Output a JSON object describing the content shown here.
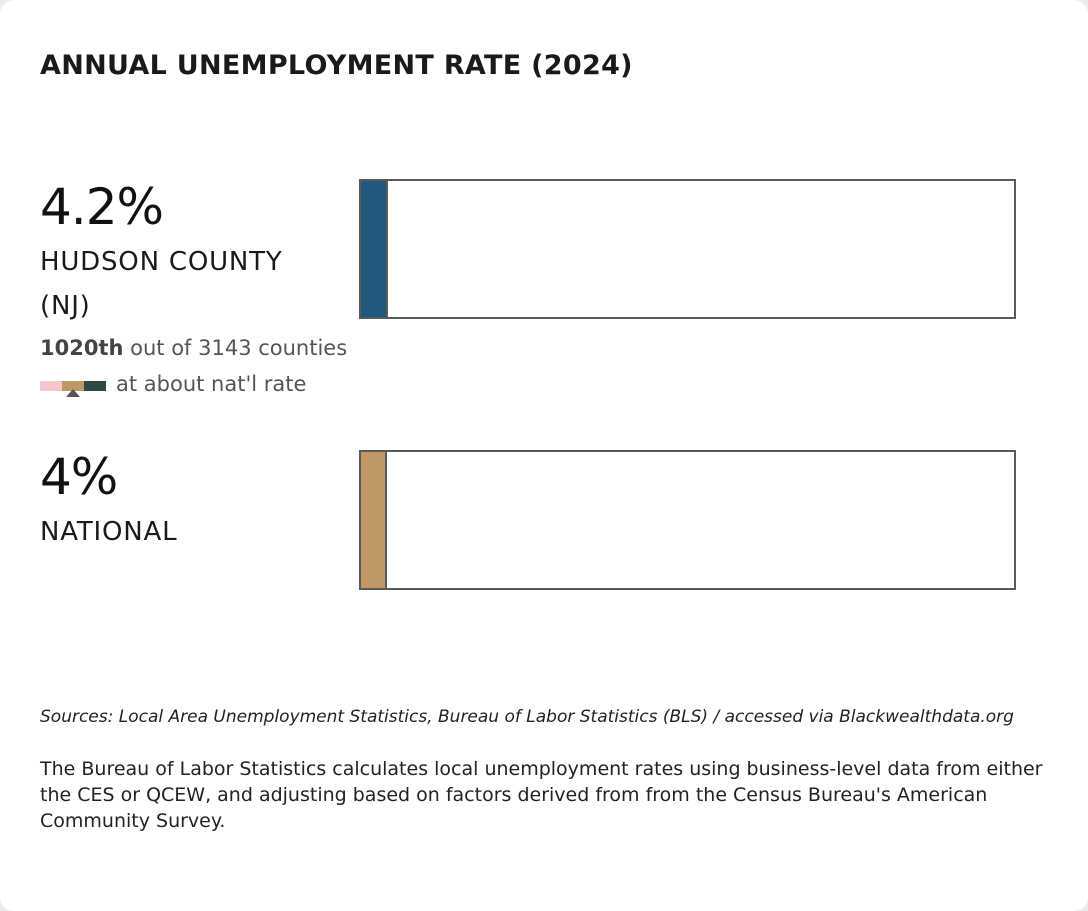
{
  "title": "ANNUAL UNEMPLOYMENT RATE (2024)",
  "colors": {
    "local_bar": "#22587c",
    "national_bar": "#bf9866",
    "scale_below": "#f7c6cd",
    "scale_about": "#bf9866",
    "scale_above": "#2d4a45"
  },
  "chart_data": {
    "type": "bar",
    "orientation": "horizontal",
    "unit": "%",
    "xlim": [
      0,
      100
    ],
    "categories": [
      "HUDSON COUNTY (NJ)",
      "NATIONAL"
    ],
    "values": [
      4.2,
      4.0
    ],
    "value_labels": [
      "4.2%",
      "4%"
    ],
    "rank": {
      "position": "1020th",
      "text": "out of 3143 counties"
    },
    "comparison": {
      "text": "at about nat'l rate",
      "scale_segments": [
        "below",
        "about",
        "above"
      ],
      "indicated_segment": 1
    }
  },
  "footer": {
    "sources": "Sources: Local Area Unemployment Statistics, Bureau of Labor Statistics (BLS) / accessed via Blackwealthdata.org",
    "note": "The Bureau of Labor Statistics calculates local unemployment rates using business-level data from either the CES or QCEW, and adjusting based on factors derived from from the Census Bureau's American Community Survey."
  }
}
